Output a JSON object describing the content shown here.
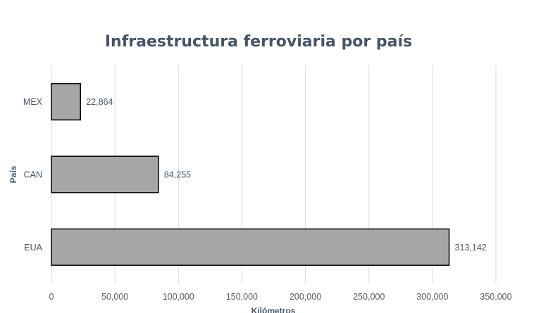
{
  "chart_data": {
    "type": "bar",
    "orientation": "horizontal",
    "title": "Infraestructura ferroviaria por país",
    "xlabel": "Kilómetros",
    "ylabel": "País",
    "categories": [
      "MEX",
      "CAN",
      "EUA"
    ],
    "values": [
      22864,
      84255,
      313142
    ],
    "data_labels": [
      "22,864",
      "84,255",
      "313,142"
    ],
    "xlim": [
      0,
      350000
    ],
    "xticks": [
      "0",
      "50,000",
      "100,000",
      "150,000",
      "200,000",
      "250,000",
      "300,000",
      "350,000"
    ],
    "grid": true,
    "legend": "none",
    "colors": {
      "bar_fill": "#a6a6a6",
      "bar_stroke": "#000000",
      "title": "#44546a"
    }
  }
}
